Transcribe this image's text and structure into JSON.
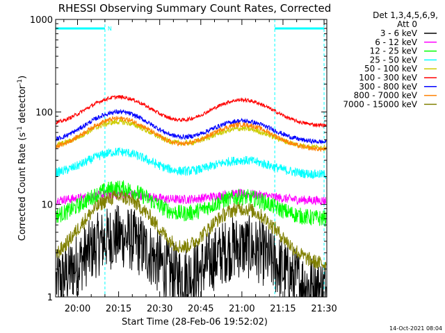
{
  "chart_data": {
    "type": "line",
    "title": "RHESSI Observing Summary Count Rates, Corrected",
    "xlabel": "Start Time (28-Feb-06 19:52:02)",
    "ylabel_main": "Corrected Count Rate (s",
    "ylabel_sup1": "-1",
    "ylabel_mid": " detector",
    "ylabel_sup2": "-1",
    "ylabel_end": ")",
    "yscale": "log",
    "ylim": [
      1,
      1000
    ],
    "xlim_minutes": [
      0,
      99
    ],
    "x_ticks": [
      {
        "m": 8,
        "label": "20:00"
      },
      {
        "m": 23,
        "label": "20:15"
      },
      {
        "m": 38,
        "label": "20:30"
      },
      {
        "m": 53,
        "label": "20:45"
      },
      {
        "m": 68,
        "label": "21:00"
      },
      {
        "m": 83,
        "label": "21:15"
      },
      {
        "m": 98,
        "label": "21:30"
      }
    ],
    "y_ticks": [
      {
        "v": 1,
        "label": "1"
      },
      {
        "v": 10,
        "label": "10"
      },
      {
        "v": 100,
        "label": "100"
      },
      {
        "v": 1000,
        "label": "1000"
      }
    ],
    "legend_header_1": "Det 1,3,4,5,6,9,",
    "legend_header_2": "Att 0",
    "series": [
      {
        "name": "3 - 6 keV",
        "color": "#000000",
        "base": 1.2,
        "peak1": 4.5,
        "peak2": 3.5,
        "noise": 0.35
      },
      {
        "name": "6 - 12 keV",
        "color": "#ff00ff",
        "base": 11,
        "peak1": 13,
        "peak2": 13,
        "noise": 0.05
      },
      {
        "name": "12 - 25 keV",
        "color": "#00ff00",
        "base": 7,
        "peak1": 15,
        "peak2": 12,
        "noise": 0.09
      },
      {
        "name": "25 - 50 keV",
        "color": "#00ffff",
        "base": 21,
        "peak1": 37,
        "peak2": 30,
        "noise": 0.05
      },
      {
        "name": "50 - 100 keV",
        "color": "#cccc00",
        "base": 41,
        "peak1": 78,
        "peak2": 66,
        "noise": 0.03
      },
      {
        "name": "100 - 300 keV",
        "color": "#ff0000",
        "base": 71,
        "peak1": 145,
        "peak2": 135,
        "noise": 0.02
      },
      {
        "name": "300 - 800 keV",
        "color": "#0000ff",
        "base": 47,
        "peak1": 100,
        "peak2": 80,
        "noise": 0.025
      },
      {
        "name": "800 - 7000 keV",
        "color": "#ff8000",
        "base": 39,
        "peak1": 85,
        "peak2": 73,
        "noise": 0.025
      },
      {
        "name": "7000 - 15000 keV",
        "color": "#808000",
        "base": 2.2,
        "peak1": 12,
        "peak2": 9,
        "noise": 0.08
      }
    ],
    "peak_centers_minutes": [
      23,
      68
    ],
    "peak_width_minutes": 10,
    "saa_marker_label": "N",
    "saa_intervals_minutes": [
      [
        0,
        18
      ],
      [
        80,
        98
      ]
    ],
    "night_boundaries_minutes": [
      18,
      80,
      98
    ]
  },
  "timestamp": "14-Oct-2021 08:04"
}
